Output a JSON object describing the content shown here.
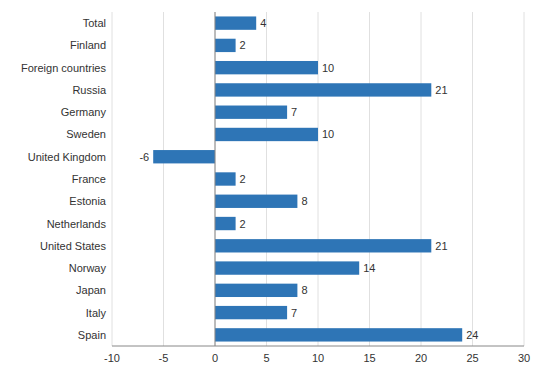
{
  "chart_data": {
    "type": "bar",
    "orientation": "horizontal",
    "categories": [
      "Spain",
      "Italy",
      "Japan",
      "Norway",
      "United States",
      "Netherlands",
      "Estonia",
      "France",
      "United Kingdom",
      "Sweden",
      "Germany",
      "Russia",
      "Foreign countries",
      "Finland",
      "Total"
    ],
    "values": [
      24,
      7,
      8,
      14,
      21,
      2,
      8,
      2,
      -6,
      10,
      7,
      21,
      10,
      2,
      4
    ],
    "color": "#2E75B6",
    "xlim": [
      -10,
      30
    ],
    "xticks": [
      -10,
      -5,
      0,
      5,
      10,
      15,
      20,
      25,
      30
    ],
    "grid": true,
    "data_labels": true
  }
}
